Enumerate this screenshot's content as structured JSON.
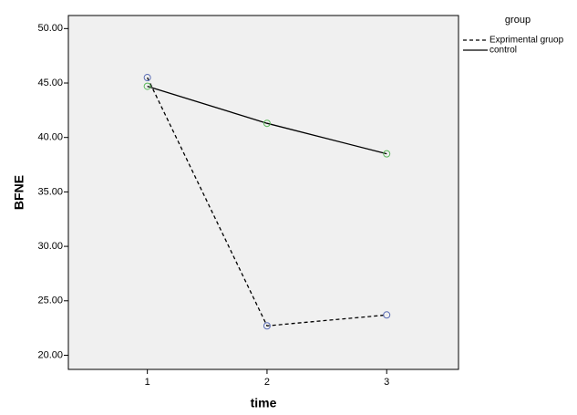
{
  "chart_data": {
    "type": "line",
    "x_label": "time",
    "y_label": "BFNE",
    "legend_title": "group",
    "legend_position": "outside right top",
    "x": [
      1,
      2,
      3
    ],
    "series": [
      {
        "name": "Exprimental gruop",
        "color": "#000000",
        "marker_color": "#5b6db5",
        "dash": "dashed",
        "values": [
          45.5,
          22.7,
          23.7
        ]
      },
      {
        "name": "control",
        "color": "#000000",
        "marker_color": "#5cb85c",
        "dash": "solid",
        "values": [
          44.7,
          41.3,
          38.5
        ]
      }
    ],
    "xlim": [
      0.34,
      3.6
    ],
    "xticks": [
      1,
      2,
      3
    ],
    "ylim": [
      18.7,
      51.2
    ],
    "yticks": [
      {
        "value": 20,
        "label": "20.00"
      },
      {
        "value": 25,
        "label": "25.00"
      },
      {
        "value": 30,
        "label": "30.00"
      },
      {
        "value": 35,
        "label": "35.00"
      },
      {
        "value": 40,
        "label": "40.00"
      },
      {
        "value": 45,
        "label": "45.00"
      },
      {
        "value": 50,
        "label": "50.00"
      }
    ]
  }
}
